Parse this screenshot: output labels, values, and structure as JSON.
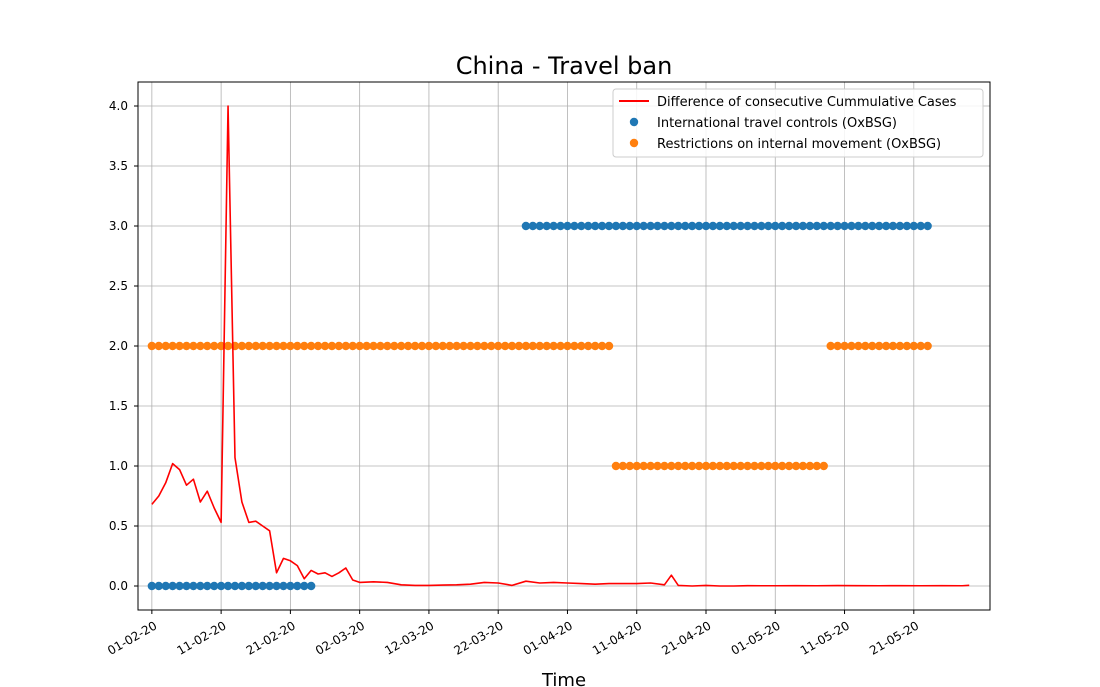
{
  "chart_data": {
    "type": "line",
    "title": "China - Travel ban",
    "xlabel": "Time",
    "ylabel": "",
    "ylim": [
      -0.2,
      4.2
    ],
    "yticks": [
      0.0,
      0.5,
      1.0,
      1.5,
      2.0,
      2.5,
      3.0,
      3.5,
      4.0
    ],
    "ytick_labels": [
      "0.0",
      "0.5",
      "1.0",
      "1.5",
      "2.0",
      "2.5",
      "3.0",
      "3.5",
      "4.0"
    ],
    "x_range": [
      "2020-01-30",
      "2020-06-01"
    ],
    "xtick_dates": [
      "2020-02-01",
      "2020-02-11",
      "2020-02-21",
      "2020-03-02",
      "2020-03-12",
      "2020-03-22",
      "2020-04-01",
      "2020-04-11",
      "2020-04-21",
      "2020-05-01",
      "2020-05-11",
      "2020-05-21"
    ],
    "xtick_labels": [
      "01-02-20",
      "11-02-20",
      "21-02-20",
      "02-03-20",
      "12-03-20",
      "22-03-20",
      "01-04-20",
      "11-04-20",
      "21-04-20",
      "01-05-20",
      "11-05-20",
      "21-05-20"
    ],
    "grid": true,
    "legend_position": "upper right",
    "series": [
      {
        "name": "Difference of consecutive Cummulative Cases",
        "kind": "line",
        "color": "#ff0000",
        "points": [
          [
            "2020-02-01",
            0.68
          ],
          [
            "2020-02-02",
            0.75
          ],
          [
            "2020-02-03",
            0.86
          ],
          [
            "2020-02-04",
            1.02
          ],
          [
            "2020-02-05",
            0.97
          ],
          [
            "2020-02-06",
            0.84
          ],
          [
            "2020-02-07",
            0.89
          ],
          [
            "2020-02-08",
            0.7
          ],
          [
            "2020-02-09",
            0.79
          ],
          [
            "2020-02-10",
            0.65
          ],
          [
            "2020-02-11",
            0.53
          ],
          [
            "2020-02-12",
            4.0
          ],
          [
            "2020-02-13",
            1.07
          ],
          [
            "2020-02-14",
            0.7
          ],
          [
            "2020-02-15",
            0.53
          ],
          [
            "2020-02-16",
            0.54
          ],
          [
            "2020-02-17",
            0.5
          ],
          [
            "2020-02-18",
            0.46
          ],
          [
            "2020-02-19",
            0.11
          ],
          [
            "2020-02-20",
            0.23
          ],
          [
            "2020-02-21",
            0.21
          ],
          [
            "2020-02-22",
            0.17
          ],
          [
            "2020-02-23",
            0.06
          ],
          [
            "2020-02-24",
            0.13
          ],
          [
            "2020-02-25",
            0.1
          ],
          [
            "2020-02-26",
            0.11
          ],
          [
            "2020-02-27",
            0.08
          ],
          [
            "2020-02-28",
            0.11
          ],
          [
            "2020-02-29",
            0.15
          ],
          [
            "2020-03-01",
            0.05
          ],
          [
            "2020-03-02",
            0.03
          ],
          [
            "2020-03-04",
            0.035
          ],
          [
            "2020-03-06",
            0.03
          ],
          [
            "2020-03-08",
            0.01
          ],
          [
            "2020-03-10",
            0.005
          ],
          [
            "2020-03-12",
            0.005
          ],
          [
            "2020-03-14",
            0.008
          ],
          [
            "2020-03-16",
            0.01
          ],
          [
            "2020-03-18",
            0.015
          ],
          [
            "2020-03-20",
            0.03
          ],
          [
            "2020-03-22",
            0.025
          ],
          [
            "2020-03-24",
            0.005
          ],
          [
            "2020-03-26",
            0.04
          ],
          [
            "2020-03-28",
            0.025
          ],
          [
            "2020-03-30",
            0.03
          ],
          [
            "2020-04-01",
            0.025
          ],
          [
            "2020-04-03",
            0.02
          ],
          [
            "2020-04-05",
            0.015
          ],
          [
            "2020-04-07",
            0.02
          ],
          [
            "2020-04-09",
            0.02
          ],
          [
            "2020-04-11",
            0.02
          ],
          [
            "2020-04-13",
            0.025
          ],
          [
            "2020-04-15",
            0.01
          ],
          [
            "2020-04-16",
            0.09
          ],
          [
            "2020-04-17",
            0.005
          ],
          [
            "2020-04-19",
            0.0
          ],
          [
            "2020-04-21",
            0.005
          ],
          [
            "2020-04-23",
            0.0
          ],
          [
            "2020-04-25",
            0.0
          ],
          [
            "2020-04-27",
            0.003
          ],
          [
            "2020-04-29",
            0.002
          ],
          [
            "2020-05-01",
            0.002
          ],
          [
            "2020-05-04",
            0.003
          ],
          [
            "2020-05-07",
            0.002
          ],
          [
            "2020-05-10",
            0.004
          ],
          [
            "2020-05-13",
            0.003
          ],
          [
            "2020-05-16",
            0.002
          ],
          [
            "2020-05-19",
            0.003
          ],
          [
            "2020-05-22",
            0.002
          ],
          [
            "2020-05-25",
            0.003
          ],
          [
            "2020-05-28",
            0.002
          ],
          [
            "2020-05-29",
            0.006
          ]
        ]
      },
      {
        "name": "International travel controls (OxBSG)",
        "kind": "scatter",
        "color": "#1f77b4",
        "segments": [
          {
            "start": "2020-02-01",
            "end": "2020-02-24",
            "value": 0
          },
          {
            "start": "2020-03-26",
            "end": "2020-05-23",
            "value": 3
          }
        ]
      },
      {
        "name": "Restrictions on internal movement (OxBSG)",
        "kind": "scatter",
        "color": "#ff7f0e",
        "segments": [
          {
            "start": "2020-02-01",
            "end": "2020-04-07",
            "value": 2
          },
          {
            "start": "2020-04-08",
            "end": "2020-05-08",
            "value": 1
          },
          {
            "start": "2020-05-09",
            "end": "2020-05-23",
            "value": 2
          }
        ]
      }
    ]
  }
}
